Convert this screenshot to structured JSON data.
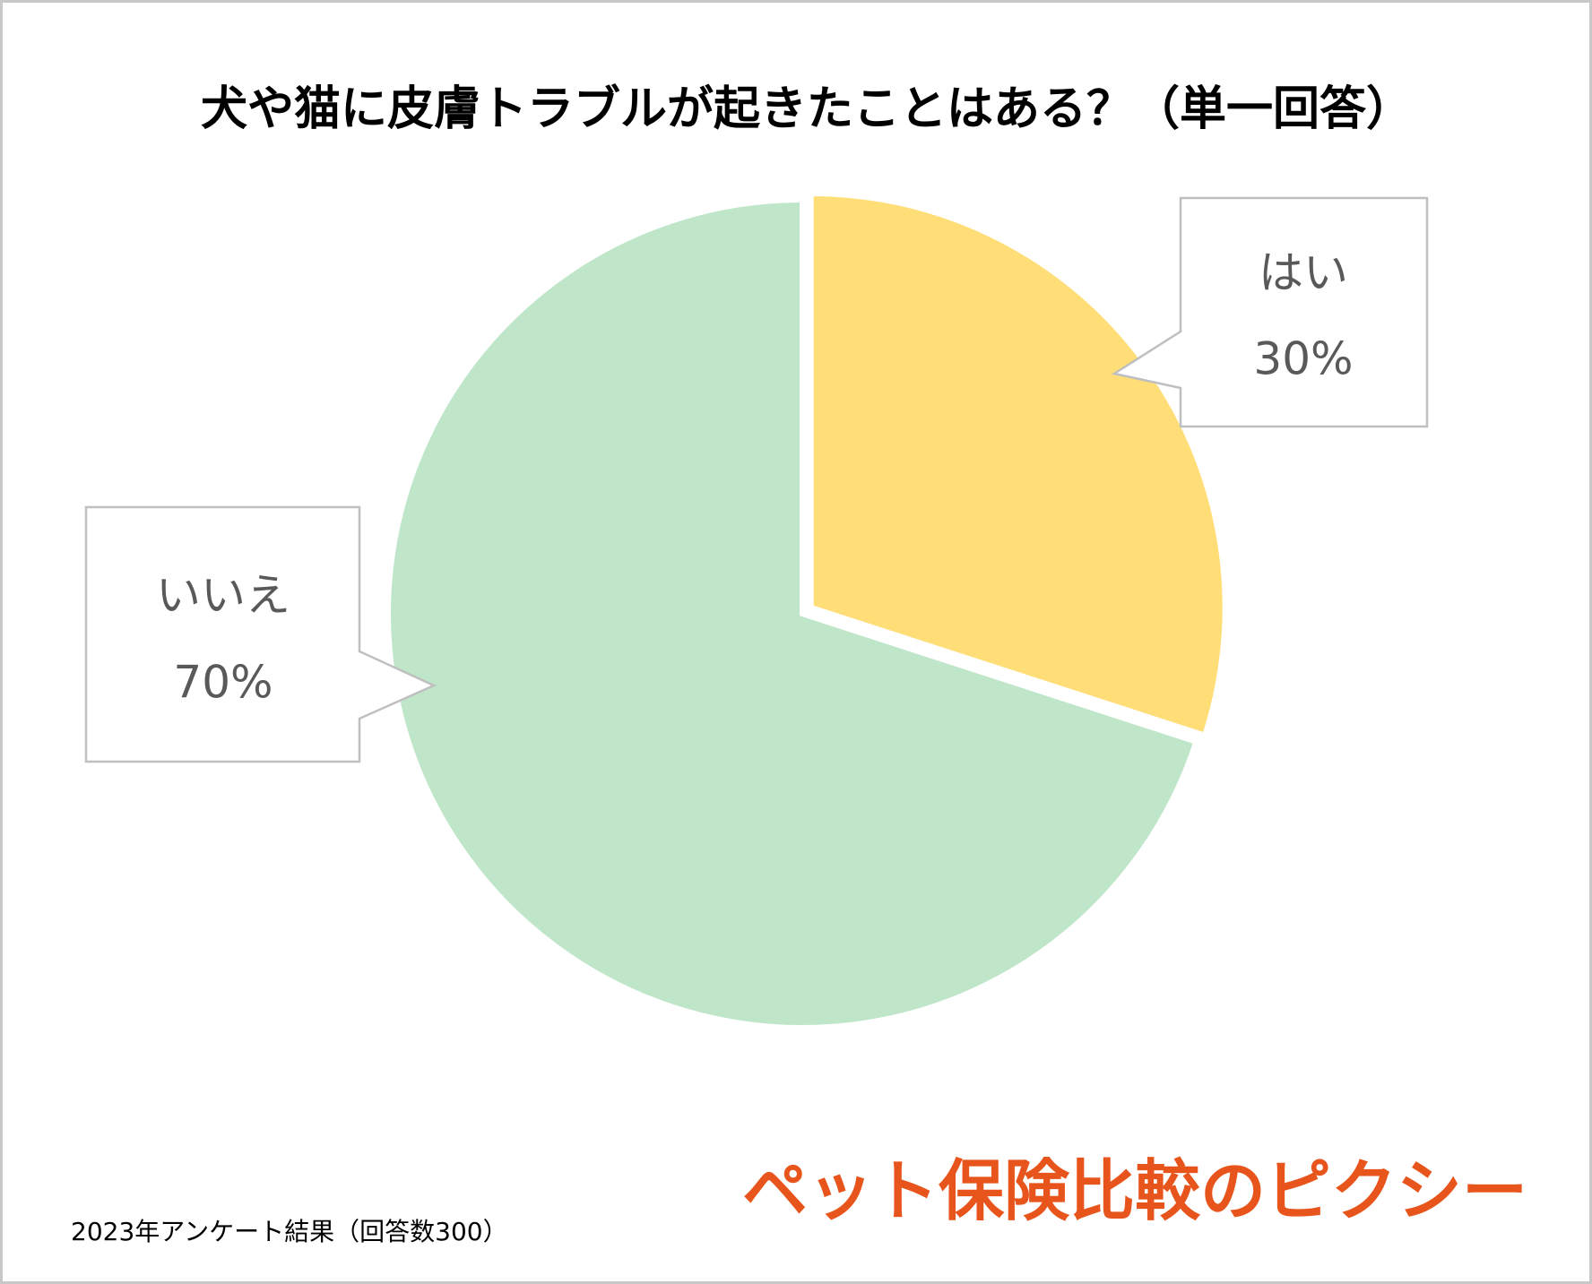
{
  "chart_data": {
    "type": "pie",
    "title": "犬や猫に皮膚トラブルが起きたことはある？（単一回答）",
    "categories": [
      "はい",
      "いいえ"
    ],
    "values": [
      30,
      70
    ],
    "value_labels": [
      "30%",
      "70%"
    ],
    "colors": [
      "#FFDD77",
      "#C0E6CA"
    ]
  },
  "footnote": "2023年アンケート結果（回答数300）",
  "logo": "ペット保険比較のピクシー"
}
